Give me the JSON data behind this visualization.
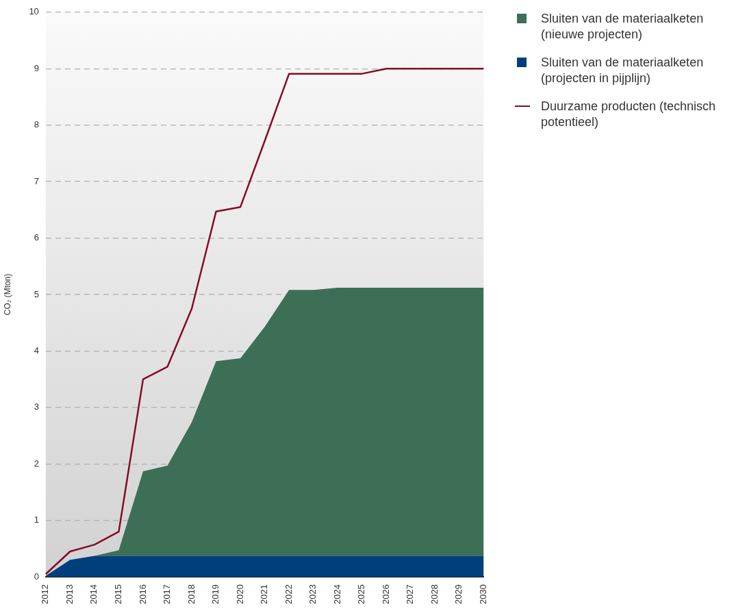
{
  "chart_data": {
    "type": "area",
    "stacked": true,
    "ylabel": "CO₂ (Mton)",
    "categories": [
      "2012",
      "2013",
      "2014",
      "2015",
      "2016",
      "2017",
      "2018",
      "2019",
      "2020",
      "2021",
      "2022",
      "2023",
      "2024",
      "2025",
      "2026",
      "2027",
      "2028",
      "2029",
      "2030"
    ],
    "series": [
      {
        "name": "Sluiten van de materiaalketen (projecten in pijplijn)",
        "type": "area",
        "color": "#003f7d",
        "values": [
          0.02,
          0.3,
          0.37,
          0.37,
          0.37,
          0.37,
          0.37,
          0.37,
          0.37,
          0.37,
          0.37,
          0.37,
          0.37,
          0.37,
          0.37,
          0.37,
          0.37,
          0.37,
          0.37
        ]
      },
      {
        "name": "Sluiten van de materiaalketen (nieuwe projecten)",
        "type": "area",
        "color": "#3d6f57",
        "values": [
          0,
          0,
          0,
          0.1,
          1.5,
          1.6,
          2.37,
          3.45,
          3.5,
          4.06,
          4.71,
          4.71,
          4.75,
          4.75,
          4.75,
          4.75,
          4.75,
          4.75,
          4.75
        ]
      },
      {
        "name": "Duurzame producten (technisch potentieel)",
        "type": "line",
        "color": "#850a26",
        "values": [
          0.05,
          0.45,
          0.57,
          0.8,
          3.5,
          3.72,
          4.75,
          6.47,
          6.55,
          7.72,
          8.91,
          8.91,
          8.91,
          8.91,
          9,
          9,
          9,
          9,
          9
        ]
      }
    ],
    "ylim": [
      0,
      10
    ],
    "yticks": [
      0,
      1,
      2,
      3,
      4,
      5,
      6,
      7,
      8,
      9,
      10
    ],
    "grid": "y",
    "legend": "top right",
    "line_style": "solid",
    "marker": "none"
  }
}
